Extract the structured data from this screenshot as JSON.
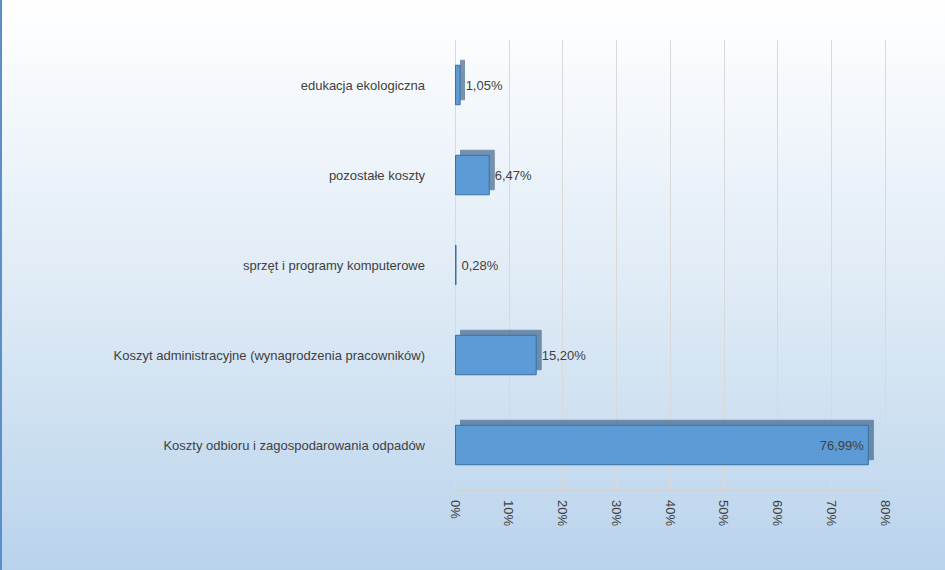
{
  "chart_data": {
    "type": "bar",
    "orientation": "horizontal",
    "categories": [
      "Koszty odbioru i zagospodarowania odpadów",
      "Koszyt administracyjne (wynagrodzenia pracowników)",
      "sprzęt i programy komputerowe",
      "pozostałe koszty",
      "edukacja ekologiczna"
    ],
    "values": [
      76.99,
      15.2,
      0.28,
      6.47,
      1.05
    ],
    "value_labels": [
      "76,99%",
      "15,20%",
      "0,28%",
      "6,47%",
      "1,05%"
    ],
    "color": "#5b9bd5",
    "xlim": [
      0,
      80
    ],
    "xticks": [
      {
        "value": 0,
        "label": "0%"
      },
      {
        "value": 10,
        "label": "10%"
      },
      {
        "value": 20,
        "label": "20%"
      },
      {
        "value": 30,
        "label": "30%"
      },
      {
        "value": 40,
        "label": "40%"
      },
      {
        "value": 50,
        "label": "50%"
      },
      {
        "value": 60,
        "label": "60%"
      },
      {
        "value": 70,
        "label": "70%"
      },
      {
        "value": 80,
        "label": "80%"
      }
    ],
    "grid": true,
    "data_labels": true
  }
}
